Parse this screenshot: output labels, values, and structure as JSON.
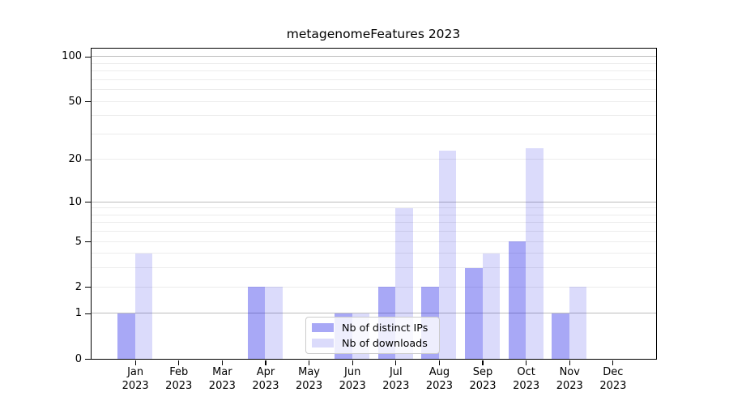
{
  "chart_data": {
    "type": "bar",
    "title": "metagenomeFeatures 2023",
    "year_label": "2023",
    "categories": [
      "Jan",
      "Feb",
      "Mar",
      "Apr",
      "May",
      "Jun",
      "Jul",
      "Aug",
      "Sep",
      "Oct",
      "Nov",
      "Dec"
    ],
    "series": [
      {
        "name": "Nb of distinct IPs",
        "color": "#0000e657",
        "values": [
          1,
          0,
          0,
          2,
          0,
          1,
          2,
          2,
          3,
          5,
          1,
          0
        ]
      },
      {
        "name": "Nb of downloads",
        "color": "#0000e624",
        "values": [
          4,
          0,
          0,
          2,
          0,
          1,
          9,
          23,
          4,
          24,
          2,
          0
        ]
      }
    ],
    "xlabel": "",
    "ylabel": "",
    "y_scale": "log10(1+x)",
    "y_ticks": [
      0,
      1,
      2,
      5,
      10,
      20,
      50,
      100
    ],
    "ylim": [
      0,
      115
    ],
    "grid": {
      "major_values": [
        1,
        10,
        100
      ],
      "minor_values": [
        2,
        3,
        4,
        5,
        6,
        7,
        8,
        9,
        20,
        30,
        40,
        50,
        60,
        70,
        80,
        90
      ],
      "major_color": "#bcbcbc",
      "minor_color": "#ececec"
    },
    "legend_position": "lower center"
  }
}
